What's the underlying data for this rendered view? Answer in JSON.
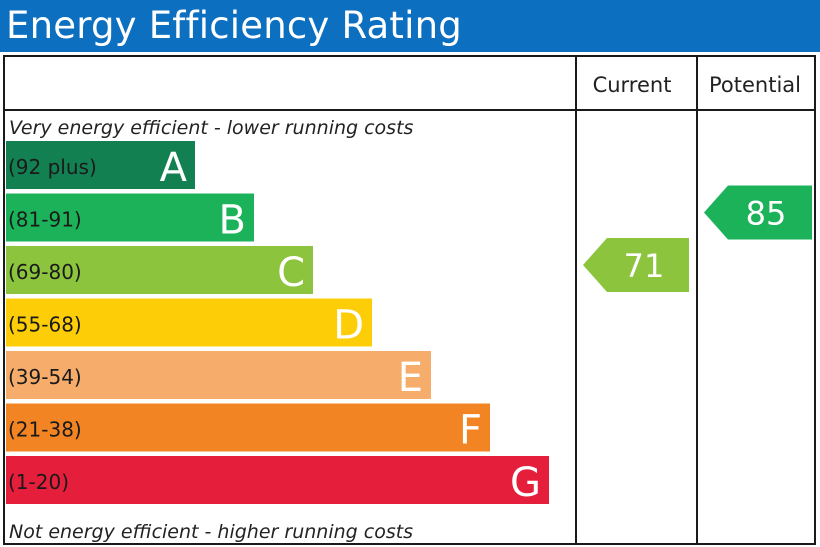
{
  "title": "Energy Efficiency Rating",
  "headers": {
    "current": "Current",
    "potential": "Potential"
  },
  "top_note": "Very energy efficient - lower running costs",
  "bottom_note": "Not energy efficient - higher running costs",
  "chart_data": {
    "type": "bar",
    "bands": [
      {
        "letter": "A",
        "range": "(92 plus)",
        "min": 92,
        "max": 100,
        "color": "#138051"
      },
      {
        "letter": "B",
        "range": "(81-91)",
        "min": 81,
        "max": 91,
        "color": "#1bb25a"
      },
      {
        "letter": "C",
        "range": "(69-80)",
        "min": 69,
        "max": 80,
        "color": "#8cc43e"
      },
      {
        "letter": "D",
        "range": "(55-68)",
        "min": 55,
        "max": 68,
        "color": "#fdcd07"
      },
      {
        "letter": "E",
        "range": "(39-54)",
        "min": 39,
        "max": 54,
        "color": "#f6ad6c"
      },
      {
        "letter": "F",
        "range": "(21-38)",
        "min": 21,
        "max": 38,
        "color": "#f28423"
      },
      {
        "letter": "G",
        "range": "(1-20)",
        "min": 1,
        "max": 20,
        "color": "#e51e3c"
      }
    ],
    "current": {
      "value": 71,
      "label": "71",
      "band": "C",
      "color": "#8cc43e"
    },
    "potential": {
      "value": 85,
      "label": "85",
      "band": "B",
      "color": "#1bb25a"
    }
  }
}
